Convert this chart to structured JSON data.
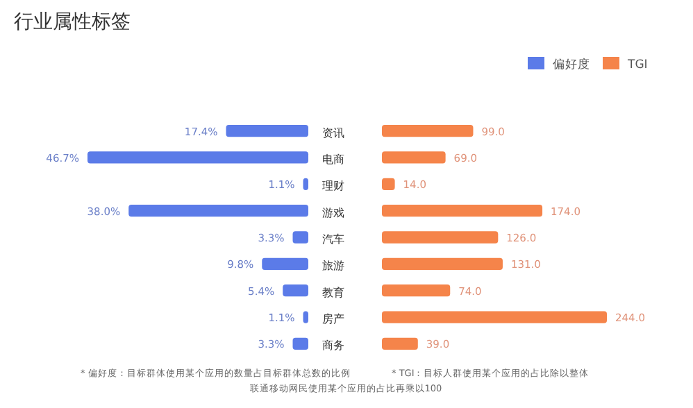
{
  "chart_data": [
    {
      "type": "bar",
      "orientation": "horizontal",
      "title": "行业属性标签",
      "categories": [
        "资讯",
        "电商",
        "理财",
        "游戏",
        "汽车",
        "旅游",
        "教育",
        "房产",
        "商务"
      ],
      "legend": "top right",
      "series": [
        {
          "name": "偏好度",
          "color": "#5b7be8",
          "values": [
            17.4,
            46.7,
            1.1,
            38.0,
            3.3,
            9.8,
            5.4,
            1.1,
            3.3
          ],
          "value_labels": [
            "17.4%",
            "46.7%",
            "1.1%",
            "38.0%",
            "3.3%",
            "9.8%",
            "5.4%",
            "1.1%",
            "3.3%"
          ]
        }
      ],
      "annotations": [
        "* 偏好度：目标群体使用某个应用的数量占目标群体总数的比例",
        "* TGI：目标人群使用某个应用的占比除以整体联通移动网民使用某个应用的占比再乘以100"
      ]
    },
    {
      "type": "bar",
      "orientation": "horizontal",
      "categories": [
        null,
        null,
        null,
        null,
        null,
        null,
        null,
        null,
        null
      ],
      "legend": "top right",
      "series": [
        {
          "name": "TGI",
          "color": "#f5844a",
          "values": [
            99.0,
            69.0,
            14.0,
            174.0,
            126.0,
            131.0,
            74.0,
            244.0,
            39.0
          ],
          "value_labels": [
            "99.0",
            "69.0",
            "14.0",
            "174.0",
            "126.0",
            "131.0",
            "74.0",
            "244.0",
            "39.0"
          ]
        }
      ]
    }
  ]
}
